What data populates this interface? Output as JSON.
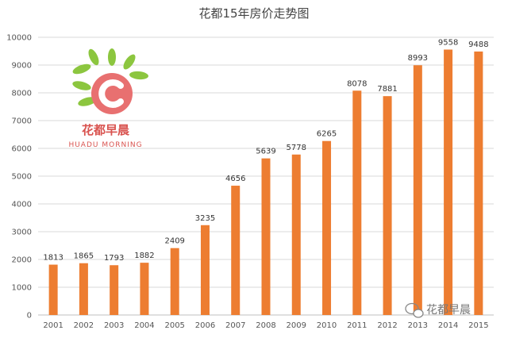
{
  "chart_data": {
    "type": "bar",
    "title": "花都15年房价走势图",
    "categories": [
      "2001",
      "2002",
      "2003",
      "2004",
      "2005",
      "2006",
      "2007",
      "2008",
      "2009",
      "2010",
      "2011",
      "2012",
      "2013",
      "2014",
      "2015"
    ],
    "values": [
      1813,
      1865,
      1793,
      1882,
      2409,
      3235,
      4656,
      5639,
      5778,
      6265,
      8078,
      7881,
      8993,
      9558,
      9488
    ],
    "ylim": [
      0,
      10000
    ],
    "yticks": [
      0,
      1000,
      2000,
      3000,
      4000,
      5000,
      6000,
      7000,
      8000,
      9000,
      10000
    ],
    "grid": true,
    "bar_color": "#ED7D31",
    "xlabel": "",
    "ylabel": ""
  },
  "logo": {
    "name_cn": "花都早晨",
    "name_en": "HUADU MORNING",
    "accent_color": "#E87070",
    "leaf_color": "#8CC63F"
  },
  "watermark": {
    "text": "花都早晨",
    "icon": "wechat-icon"
  }
}
